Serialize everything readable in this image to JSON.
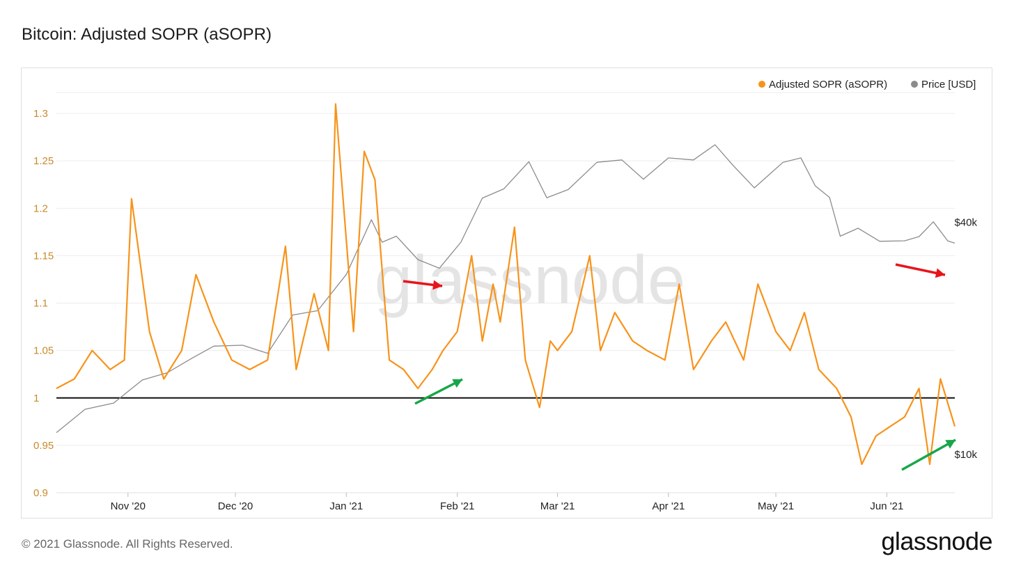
{
  "header": {
    "title": "Bitcoin: Adjusted SOPR (aSOPR)"
  },
  "footer": {
    "copyright": "© 2021 Glassnode. All Rights Reserved.",
    "logo": "glassnode"
  },
  "watermark": "glassnode",
  "colors": {
    "sopr": "#f7931a",
    "price": "#8c8c8c",
    "baseline": "#111111",
    "red_arrow": "#e8141b",
    "green_arrow": "#17a64a"
  },
  "chart_data": {
    "type": "line",
    "title": "Bitcoin: Adjusted SOPR (aSOPR)",
    "x_ticks": [
      "Nov '20",
      "Dec '20",
      "Jan '21",
      "Feb '21",
      "Mar '21",
      "Apr '21",
      "May '21",
      "Jun '21"
    ],
    "x_tick_dates": [
      "2020-11-01",
      "2020-12-01",
      "2021-01-01",
      "2021-02-01",
      "2021-03-01",
      "2021-04-01",
      "2021-05-01",
      "2021-06-01"
    ],
    "x_range": [
      "2020-10-12",
      "2021-06-20"
    ],
    "y_left": {
      "ticks": [
        "0.9",
        "0.95",
        "1",
        "1.05",
        "1.1",
        "1.15",
        "1.2",
        "1.25",
        "1.3"
      ],
      "range": [
        0.9,
        1.3
      ]
    },
    "y_right": {
      "ticks": [
        "$10k",
        "$40k"
      ],
      "scale": "log"
    },
    "legend": {
      "position": "top-right",
      "entries": [
        "Adjusted SOPR (aSOPR)",
        "Price [USD]"
      ]
    },
    "reference_line": 1,
    "series": [
      {
        "name": "Adjusted SOPR (aSOPR)",
        "axis": "left",
        "x": [
          "2020-10-12",
          "2020-10-17",
          "2020-10-22",
          "2020-10-27",
          "2020-10-31",
          "2020-11-02",
          "2020-11-07",
          "2020-11-11",
          "2020-11-16",
          "2020-11-20",
          "2020-11-25",
          "2020-11-30",
          "2020-12-05",
          "2020-12-10",
          "2020-12-15",
          "2020-12-18",
          "2020-12-23",
          "2020-12-27",
          "2020-12-29",
          "2021-01-03",
          "2021-01-06",
          "2021-01-09",
          "2021-01-13",
          "2021-01-17",
          "2021-01-21",
          "2021-01-25",
          "2021-01-28",
          "2021-02-01",
          "2021-02-05",
          "2021-02-08",
          "2021-02-11",
          "2021-02-13",
          "2021-02-17",
          "2021-02-20",
          "2021-02-24",
          "2021-02-27",
          "2021-03-01",
          "2021-03-05",
          "2021-03-10",
          "2021-03-13",
          "2021-03-17",
          "2021-03-22",
          "2021-03-26",
          "2021-03-31",
          "2021-04-04",
          "2021-04-08",
          "2021-04-13",
          "2021-04-17",
          "2021-04-22",
          "2021-04-26",
          "2021-05-01",
          "2021-05-05",
          "2021-05-09",
          "2021-05-13",
          "2021-05-18",
          "2021-05-22",
          "2021-05-25",
          "2021-05-29",
          "2021-06-02",
          "2021-06-06",
          "2021-06-10",
          "2021-06-13",
          "2021-06-16",
          "2021-06-20"
        ],
        "y": [
          1.01,
          1.02,
          1.05,
          1.03,
          1.04,
          1.21,
          1.07,
          1.02,
          1.05,
          1.13,
          1.08,
          1.04,
          1.03,
          1.04,
          1.16,
          1.03,
          1.11,
          1.05,
          1.31,
          1.07,
          1.26,
          1.23,
          1.04,
          1.03,
          1.01,
          1.03,
          1.05,
          1.07,
          1.15,
          1.06,
          1.12,
          1.08,
          1.18,
          1.04,
          0.99,
          1.06,
          1.05,
          1.07,
          1.15,
          1.05,
          1.09,
          1.06,
          1.05,
          1.04,
          1.12,
          1.03,
          1.06,
          1.08,
          1.04,
          1.12,
          1.07,
          1.05,
          1.09,
          1.03,
          1.01,
          0.98,
          0.93,
          0.96,
          0.97,
          0.98,
          1.01,
          0.93,
          1.02,
          0.97
        ]
      },
      {
        "name": "Price [USD]",
        "axis": "right",
        "x": [
          "2020-10-12",
          "2020-10-20",
          "2020-10-28",
          "2020-11-05",
          "2020-11-12",
          "2020-11-19",
          "2020-11-25",
          "2020-12-03",
          "2020-12-10",
          "2020-12-17",
          "2020-12-24",
          "2021-01-01",
          "2021-01-08",
          "2021-01-11",
          "2021-01-15",
          "2021-01-21",
          "2021-01-27",
          "2021-02-02",
          "2021-02-08",
          "2021-02-14",
          "2021-02-21",
          "2021-02-26",
          "2021-03-04",
          "2021-03-12",
          "2021-03-19",
          "2021-03-25",
          "2021-04-01",
          "2021-04-08",
          "2021-04-14",
          "2021-04-19",
          "2021-04-25",
          "2021-05-03",
          "2021-05-08",
          "2021-05-12",
          "2021-05-16",
          "2021-05-19",
          "2021-05-24",
          "2021-05-30",
          "2021-06-06",
          "2021-06-10",
          "2021-06-14",
          "2021-06-18",
          "2021-06-20"
        ],
        "y": [
          11400,
          13100,
          13600,
          15600,
          16300,
          17800,
          19100,
          19200,
          18300,
          23000,
          23600,
          29300,
          40600,
          35500,
          36800,
          32000,
          30400,
          35500,
          46200,
          48800,
          57400,
          46300,
          48600,
          57200,
          58000,
          51700,
          58700,
          58000,
          63500,
          56200,
          49100,
          57200,
          58700,
          49700,
          46400,
          36800,
          38600,
          35700,
          35800,
          36700,
          40100,
          35800,
          35300
        ]
      }
    ]
  }
}
